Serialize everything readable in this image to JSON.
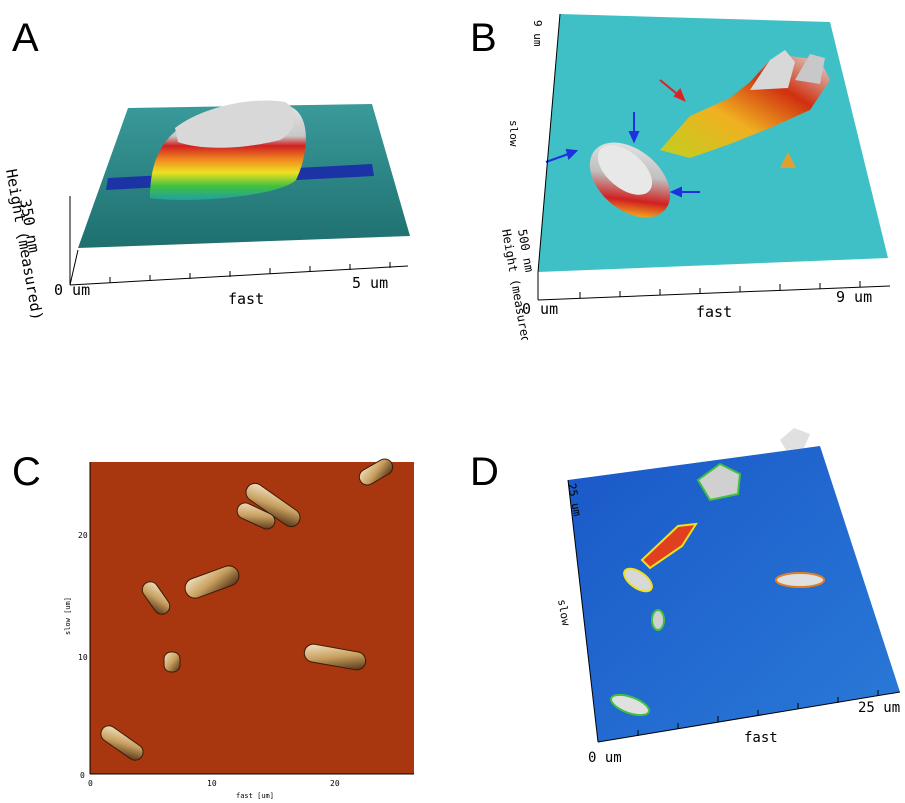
{
  "panels": {
    "a": {
      "letter": "A",
      "axis_height": "350 nm",
      "axis_height_label": "Height (measured)",
      "x_start": "0 um",
      "x_end": "5 um",
      "x_label": "fast"
    },
    "b": {
      "letter": "B",
      "y_end": "9 um",
      "y_label": "slow",
      "axis_height": "500 nm",
      "axis_height_label": "Height (measured)",
      "x_start": "0 um",
      "x_end": "9 um",
      "x_label": "fast"
    },
    "c": {
      "letter": "C",
      "y_ticks": [
        "20",
        "10",
        "0"
      ],
      "y_label": "slow [um]",
      "x_ticks": [
        "0",
        "10",
        "20"
      ],
      "x_label": "fast [um]"
    },
    "d": {
      "letter": "D",
      "y_end": "25 um",
      "y_label": "slow",
      "x_start": "0 um",
      "x_end": "25 um",
      "x_label": "fast"
    }
  },
  "colors": {
    "teal_surface": "#2aa8a8",
    "cyan_surface": "#3cc0c8",
    "brown_surface": "#a8360e",
    "blue_surface": "#1f5fd0",
    "height_red": "#d01818",
    "height_yellow": "#f0d020",
    "height_green": "#40c040",
    "height_white": "#e0e0e0"
  }
}
